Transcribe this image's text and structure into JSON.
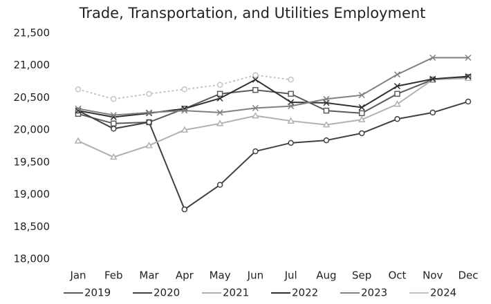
{
  "chart_data": {
    "type": "line",
    "title": "Trade, Transportation, and Utilities Employment",
    "categories": [
      "Jan",
      "Feb",
      "Mar",
      "Apr",
      "May",
      "Jun",
      "Jul",
      "Aug",
      "Sep",
      "Oct",
      "Nov",
      "Dec"
    ],
    "series": [
      {
        "name": "2019",
        "color": "#5a5a5a",
        "marker": "square",
        "values": [
          20250,
          20100,
          20120,
          20330,
          20560,
          20620,
          20560,
          20300,
          20260,
          20560,
          20780,
          20820
        ]
      },
      {
        "name": "2020",
        "color": "#404040",
        "marker": "circle",
        "values": [
          20300,
          20020,
          20120,
          18770,
          19150,
          19670,
          19800,
          19840,
          19950,
          20170,
          20270,
          20440
        ]
      },
      {
        "name": "2021",
        "color": "#b0b0b0",
        "marker": "triangle",
        "values": [
          19830,
          19580,
          19760,
          20000,
          20100,
          20220,
          20140,
          20080,
          20160,
          20400,
          20780,
          20800
        ]
      },
      {
        "name": "2022",
        "color": "#303030",
        "marker": "x",
        "values": [
          20300,
          20200,
          20260,
          20330,
          20490,
          20780,
          20430,
          20420,
          20350,
          20680,
          20790,
          20830
        ]
      },
      {
        "name": "2023",
        "color": "#808080",
        "marker": "x",
        "values": [
          20330,
          20230,
          20270,
          20300,
          20270,
          20340,
          20370,
          20480,
          20540,
          20860,
          21120,
          21120
        ]
      },
      {
        "name": "2024",
        "color": "#c4c4c4",
        "marker": "circle",
        "values": [
          20630,
          20480,
          20560,
          20630,
          20700,
          20850,
          20780,
          null,
          null,
          null,
          null,
          null
        ]
      }
    ],
    "ylim": [
      18000,
      21500
    ],
    "yticks": [
      {
        "value": 18000,
        "label": "18,000"
      },
      {
        "value": 18500,
        "label": "18,500"
      },
      {
        "value": 19000,
        "label": "19,000"
      },
      {
        "value": 19500,
        "label": "19,500"
      },
      {
        "value": 20000,
        "label": "20,000"
      },
      {
        "value": 20500,
        "label": "20,500"
      },
      {
        "value": 21000,
        "label": "21,000"
      },
      {
        "value": 21500,
        "label": "21,500"
      }
    ],
    "grid": false,
    "legend": "bottom"
  }
}
